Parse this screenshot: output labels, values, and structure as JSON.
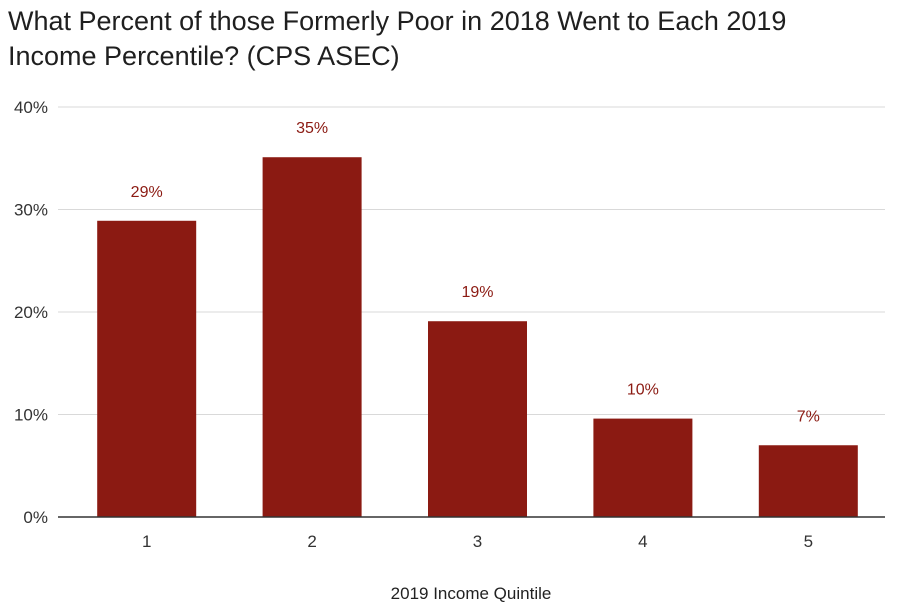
{
  "chart_data": {
    "type": "bar",
    "title_lines": [
      "What Percent of those Formerly Poor in 2018 Went to Each 2019",
      "Income Percentile? (CPS ASEC)"
    ],
    "xlabel": "2019 Income Quintile",
    "ylabel": "",
    "categories": [
      "1",
      "2",
      "3",
      "4",
      "5"
    ],
    "values": [
      28.9,
      35.1,
      19.1,
      9.6,
      7.0
    ],
    "data_labels": [
      "29%",
      "35%",
      "19%",
      "10%",
      "7%"
    ],
    "ylim": [
      0,
      40
    ],
    "yticks": [
      0,
      10,
      20,
      30,
      40
    ],
    "ytick_labels": [
      "0%",
      "10%",
      "20%",
      "30%",
      "40%"
    ],
    "grid": true,
    "legend": "none",
    "colors": {
      "bar": "#8b1a12",
      "data_label": "#8b1a12",
      "grid": "#d9d9d9",
      "axis": "#333333"
    }
  }
}
